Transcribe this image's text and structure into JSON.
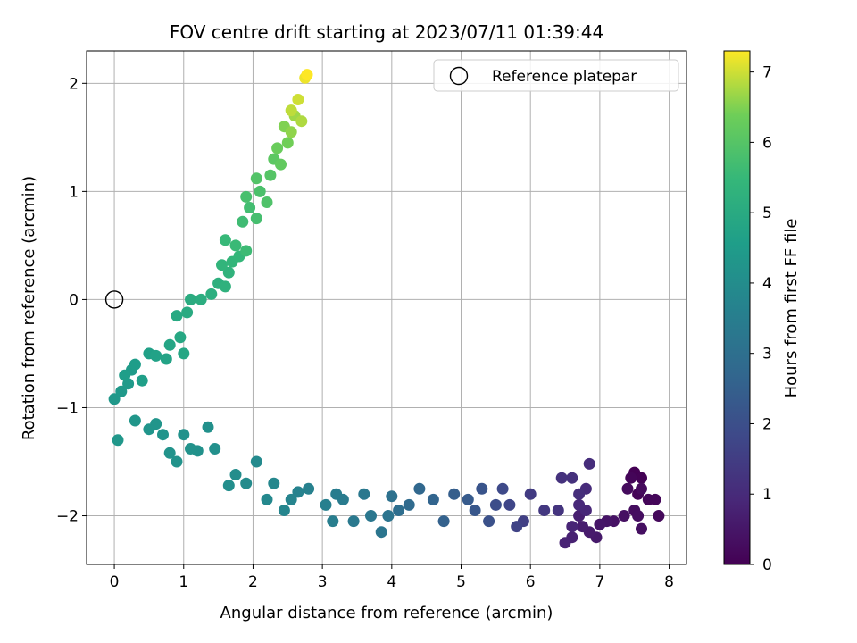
{
  "chart_data": {
    "type": "scatter",
    "title": "FOV centre drift starting at 2023/07/11 01:39:44",
    "xlabel": "Angular distance from reference (arcmin)",
    "ylabel": "Rotation from reference (arcmin)",
    "xlim": [
      -0.4,
      8.25
    ],
    "ylim": [
      -2.45,
      2.3
    ],
    "xticks": [
      0,
      1,
      2,
      3,
      4,
      5,
      6,
      7,
      8
    ],
    "yticks": [
      -2,
      -1,
      0,
      1,
      2
    ],
    "grid": true,
    "legend": {
      "position": "top-right",
      "entries": [
        "Reference platepar"
      ]
    },
    "reference_point": {
      "name": "Reference platepar",
      "x": 0,
      "y": 0
    },
    "colorbar": {
      "label": "Hours from first FF file",
      "colormap": "viridis",
      "range": [
        0,
        7.3
      ],
      "ticks": [
        0,
        1,
        2,
        3,
        4,
        5,
        6,
        7
      ]
    },
    "series": [
      {
        "color_value": "hours",
        "points": [
          [
            7.5,
            -1.6,
            0.0
          ],
          [
            7.6,
            -1.65,
            0.03
          ],
          [
            7.55,
            -1.8,
            0.06
          ],
          [
            7.45,
            -1.65,
            0.09
          ],
          [
            7.7,
            -1.85,
            0.12
          ],
          [
            7.8,
            -1.85,
            0.15
          ],
          [
            7.85,
            -2.0,
            0.18
          ],
          [
            7.6,
            -1.75,
            0.21
          ],
          [
            7.4,
            -1.75,
            0.24
          ],
          [
            7.5,
            -1.95,
            0.27
          ],
          [
            7.55,
            -2.0,
            0.3
          ],
          [
            7.6,
            -2.12,
            0.33
          ],
          [
            7.35,
            -2.0,
            0.36
          ],
          [
            7.2,
            -2.05,
            0.4
          ],
          [
            7.1,
            -2.05,
            0.45
          ],
          [
            7.0,
            -2.08,
            0.5
          ],
          [
            6.95,
            -2.2,
            0.55
          ],
          [
            6.85,
            -2.15,
            0.6
          ],
          [
            6.75,
            -2.1,
            0.65
          ],
          [
            6.7,
            -2.0,
            0.7
          ],
          [
            6.6,
            -2.2,
            0.75
          ],
          [
            6.5,
            -2.25,
            0.8
          ],
          [
            6.6,
            -2.1,
            0.85
          ],
          [
            6.8,
            -1.95,
            0.9
          ],
          [
            6.7,
            -1.9,
            0.95
          ],
          [
            6.8,
            -1.75,
            1.0
          ],
          [
            6.85,
            -1.52,
            1.05
          ],
          [
            6.7,
            -1.8,
            1.1
          ],
          [
            6.6,
            -1.65,
            1.15
          ],
          [
            6.45,
            -1.65,
            1.2
          ],
          [
            6.4,
            -1.95,
            1.25
          ],
          [
            6.2,
            -1.95,
            1.35
          ],
          [
            6.0,
            -1.8,
            1.45
          ],
          [
            5.9,
            -2.05,
            1.55
          ],
          [
            5.8,
            -2.1,
            1.65
          ],
          [
            5.7,
            -1.9,
            1.75
          ],
          [
            5.6,
            -1.75,
            1.85
          ],
          [
            5.5,
            -1.9,
            1.95
          ],
          [
            5.4,
            -2.05,
            2.05
          ],
          [
            5.3,
            -1.75,
            2.15
          ],
          [
            5.2,
            -1.95,
            2.25
          ],
          [
            5.1,
            -1.85,
            2.35
          ],
          [
            4.9,
            -1.8,
            2.45
          ],
          [
            4.75,
            -2.05,
            2.55
          ],
          [
            4.6,
            -1.85,
            2.65
          ],
          [
            4.4,
            -1.75,
            2.75
          ],
          [
            4.25,
            -1.9,
            2.85
          ],
          [
            4.1,
            -1.95,
            2.95
          ],
          [
            4.0,
            -1.82,
            3.05
          ],
          [
            3.95,
            -2.0,
            3.15
          ],
          [
            3.85,
            -2.15,
            3.2
          ],
          [
            3.7,
            -2.0,
            3.25
          ],
          [
            3.6,
            -1.8,
            3.3
          ],
          [
            3.45,
            -2.05,
            3.35
          ],
          [
            3.3,
            -1.85,
            3.4
          ],
          [
            3.2,
            -1.8,
            3.45
          ],
          [
            3.15,
            -2.05,
            3.5
          ],
          [
            3.05,
            -1.9,
            3.55
          ],
          [
            2.8,
            -1.75,
            3.6
          ],
          [
            2.65,
            -1.78,
            3.65
          ],
          [
            2.55,
            -1.85,
            3.7
          ],
          [
            2.45,
            -1.95,
            3.75
          ],
          [
            2.3,
            -1.7,
            3.8
          ],
          [
            2.2,
            -1.85,
            3.85
          ],
          [
            2.05,
            -1.5,
            3.9
          ],
          [
            1.9,
            -1.7,
            3.95
          ],
          [
            1.75,
            -1.62,
            4.0
          ],
          [
            1.65,
            -1.72,
            4.05
          ],
          [
            1.45,
            -1.38,
            4.1
          ],
          [
            1.35,
            -1.18,
            4.12
          ],
          [
            1.2,
            -1.4,
            4.14
          ],
          [
            1.1,
            -1.38,
            4.16
          ],
          [
            1.0,
            -1.25,
            4.18
          ],
          [
            0.9,
            -1.5,
            4.2
          ],
          [
            0.8,
            -1.42,
            4.22
          ],
          [
            0.7,
            -1.25,
            4.24
          ],
          [
            0.6,
            -1.15,
            4.26
          ],
          [
            0.5,
            -1.2,
            4.28
          ],
          [
            0.3,
            -1.12,
            4.3
          ],
          [
            0.05,
            -1.3,
            4.32
          ],
          [
            0.0,
            -0.92,
            4.36
          ],
          [
            0.1,
            -0.85,
            4.4
          ],
          [
            0.2,
            -0.78,
            4.44
          ],
          [
            0.25,
            -0.65,
            4.48
          ],
          [
            0.3,
            -0.6,
            4.52
          ],
          [
            0.15,
            -0.7,
            4.56
          ],
          [
            0.4,
            -0.75,
            4.6
          ],
          [
            0.5,
            -0.5,
            4.65
          ],
          [
            0.6,
            -0.52,
            4.7
          ],
          [
            0.75,
            -0.55,
            4.75
          ],
          [
            0.8,
            -0.42,
            4.8
          ],
          [
            1.0,
            -0.5,
            4.85
          ],
          [
            0.95,
            -0.35,
            4.9
          ],
          [
            0.9,
            -0.15,
            4.95
          ],
          [
            1.05,
            -0.12,
            5.0
          ],
          [
            1.1,
            0.0,
            5.05
          ],
          [
            1.25,
            0.0,
            5.1
          ],
          [
            1.4,
            0.05,
            5.15
          ],
          [
            1.5,
            0.15,
            5.2
          ],
          [
            1.6,
            0.12,
            5.25
          ],
          [
            1.65,
            0.25,
            5.3
          ],
          [
            1.55,
            0.32,
            5.35
          ],
          [
            1.7,
            0.35,
            5.4
          ],
          [
            1.8,
            0.4,
            5.45
          ],
          [
            1.6,
            0.55,
            5.5
          ],
          [
            1.75,
            0.5,
            5.55
          ],
          [
            1.9,
            0.45,
            5.6
          ],
          [
            1.85,
            0.72,
            5.65
          ],
          [
            1.95,
            0.85,
            5.7
          ],
          [
            2.05,
            0.75,
            5.75
          ],
          [
            1.9,
            0.95,
            5.8
          ],
          [
            2.1,
            1.0,
            5.85
          ],
          [
            2.2,
            0.9,
            5.9
          ],
          [
            2.05,
            1.12,
            5.95
          ],
          [
            2.25,
            1.15,
            6.0
          ],
          [
            2.3,
            1.3,
            6.1
          ],
          [
            2.4,
            1.25,
            6.2
          ],
          [
            2.35,
            1.4,
            6.3
          ],
          [
            2.5,
            1.45,
            6.4
          ],
          [
            2.45,
            1.6,
            6.5
          ],
          [
            2.55,
            1.55,
            6.6
          ],
          [
            2.6,
            1.7,
            6.7
          ],
          [
            2.7,
            1.65,
            6.8
          ],
          [
            2.55,
            1.75,
            6.9
          ],
          [
            2.65,
            1.85,
            7.0
          ],
          [
            2.75,
            2.05,
            7.2
          ],
          [
            2.78,
            2.08,
            7.3
          ]
        ]
      }
    ]
  }
}
